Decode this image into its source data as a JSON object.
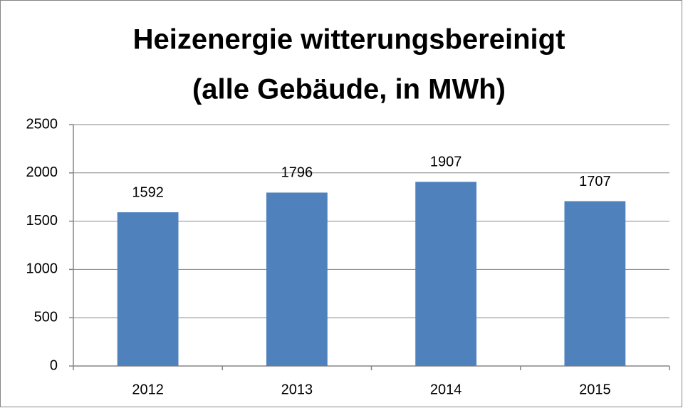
{
  "chart_data": {
    "type": "bar",
    "title": [
      "Heizenergie witterungsbereinigt",
      "(alle Gebäude, in MWh)"
    ],
    "categories": [
      "2012",
      "2013",
      "2014",
      "2015"
    ],
    "values": [
      1592,
      1796,
      1907,
      1707
    ],
    "color": "#4f81bd",
    "ylim": [
      0,
      2500
    ],
    "yticks": [
      0,
      500,
      1000,
      1500,
      2000,
      2500
    ],
    "grid": true
  }
}
